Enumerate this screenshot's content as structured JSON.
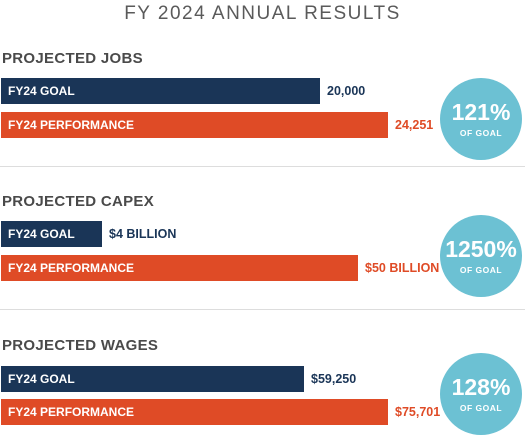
{
  "title": "FY 2024 ANNUAL RESULTS",
  "colors": {
    "goal": "#1a3557",
    "performance": "#df4b26",
    "circle": "#6cc1d3"
  },
  "chart_data": [
    {
      "type": "bar",
      "title": "PROJECTED JOBS",
      "unit": "jobs",
      "series": [
        {
          "name": "FY24 GOAL",
          "value": 20000,
          "display": "20,000"
        },
        {
          "name": "FY24 PERFORMANCE",
          "value": 24251,
          "display": "24,251"
        }
      ],
      "percent": "121%",
      "percent_label": "OF GOAL"
    },
    {
      "type": "bar",
      "title": "PROJECTED CAPEX",
      "unit": "USD billion",
      "series": [
        {
          "name": "FY24 GOAL",
          "value": 4,
          "display": "$4 BILLION"
        },
        {
          "name": "FY24 PERFORMANCE",
          "value": 50,
          "display": "$50 BILLION"
        }
      ],
      "percent": "1250%",
      "percent_label": "OF GOAL"
    },
    {
      "type": "bar",
      "title": "PROJECTED WAGES",
      "unit": "USD",
      "series": [
        {
          "name": "FY24 GOAL",
          "value": 59250,
          "display": "$59,250"
        },
        {
          "name": "FY24 PERFORMANCE",
          "value": 75701,
          "display": "$75,701"
        }
      ],
      "percent": "128%",
      "percent_label": "OF GOAL"
    }
  ]
}
